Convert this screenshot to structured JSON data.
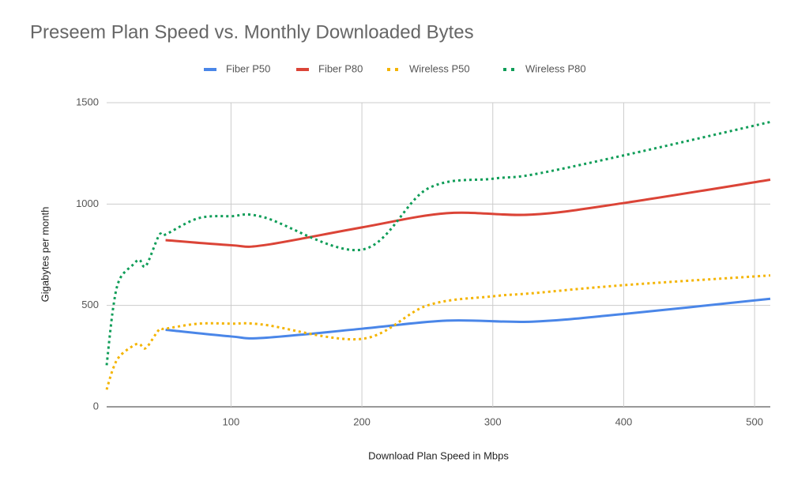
{
  "chart_data": {
    "type": "line",
    "title": "Preseem Plan Speed vs. Monthly Downloaded Bytes",
    "x_label": "Download Plan Speed in Mbps",
    "y_label": "Gigabytes per month",
    "xlim": [
      5,
      512
    ],
    "xticks": [
      100,
      200,
      300,
      400,
      500
    ],
    "ylim": [
      0,
      1500
    ],
    "yticks": [
      0,
      500,
      1000,
      1500
    ],
    "grid": true,
    "legend": "top",
    "series": [
      {
        "name": "Fiber P50",
        "color": "#4a86e8",
        "style": "solid",
        "x": [
          50,
          100,
          125,
          200,
          265,
          330,
          400,
          512
        ],
        "values": [
          380,
          347,
          340,
          385,
          425,
          420,
          458,
          533
        ]
      },
      {
        "name": "Fiber P80",
        "color": "#db4437",
        "style": "solid",
        "x": [
          50,
          100,
          125,
          200,
          265,
          330,
          400,
          512
        ],
        "values": [
          822,
          797,
          797,
          885,
          955,
          948,
          1005,
          1120
        ]
      },
      {
        "name": "Wireless P50",
        "color": "#f4b400",
        "style": "dotted",
        "x": [
          5,
          10,
          15,
          25,
          30,
          35,
          45,
          50,
          75,
          100,
          125,
          200,
          250,
          300,
          330,
          400,
          512
        ],
        "values": [
          85,
          190,
          250,
          300,
          310,
          290,
          380,
          385,
          410,
          410,
          405,
          335,
          500,
          545,
          560,
          600,
          648
        ]
      },
      {
        "name": "Wireless P80",
        "color": "#0f9d58",
        "style": "dotted",
        "x": [
          5,
          10,
          15,
          25,
          30,
          35,
          45,
          50,
          75,
          100,
          125,
          200,
          250,
          300,
          330,
          400,
          512
        ],
        "values": [
          205,
          490,
          630,
          700,
          725,
          695,
          845,
          850,
          930,
          940,
          935,
          775,
          1075,
          1125,
          1145,
          1240,
          1405
        ]
      }
    ]
  }
}
